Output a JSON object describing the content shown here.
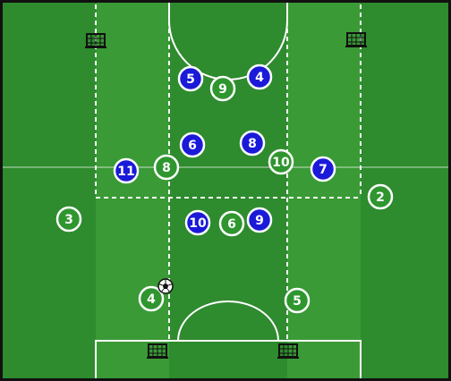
{
  "colors": {
    "pitch_dark": "#2e8b2e",
    "pitch_light": "#3a9a36",
    "lines": "#ffffff",
    "team_blue_fill": "#1a1ad8",
    "team_blue_text": "#ffffff",
    "team_white_fill": "#2f962f",
    "team_white_text": "#ffffff"
  },
  "goals": [
    {
      "id": "goal-top-left",
      "icon": "mini-goal-icon"
    },
    {
      "id": "goal-top-right",
      "icon": "mini-goal-icon"
    },
    {
      "id": "goal-bottom-left",
      "icon": "mini-goal-icon"
    },
    {
      "id": "goal-bottom-right",
      "icon": "mini-goal-icon"
    }
  ],
  "ball": {
    "icon": "soccer-ball-icon"
  },
  "players": {
    "blue": [
      {
        "number": "5"
      },
      {
        "number": "4"
      },
      {
        "number": "6"
      },
      {
        "number": "8"
      },
      {
        "number": "11"
      },
      {
        "number": "7"
      },
      {
        "number": "10"
      },
      {
        "number": "9"
      }
    ],
    "white": [
      {
        "number": "9"
      },
      {
        "number": "8"
      },
      {
        "number": "10"
      },
      {
        "number": "2"
      },
      {
        "number": "3"
      },
      {
        "number": "6"
      },
      {
        "number": "4"
      },
      {
        "number": "5"
      }
    ]
  }
}
